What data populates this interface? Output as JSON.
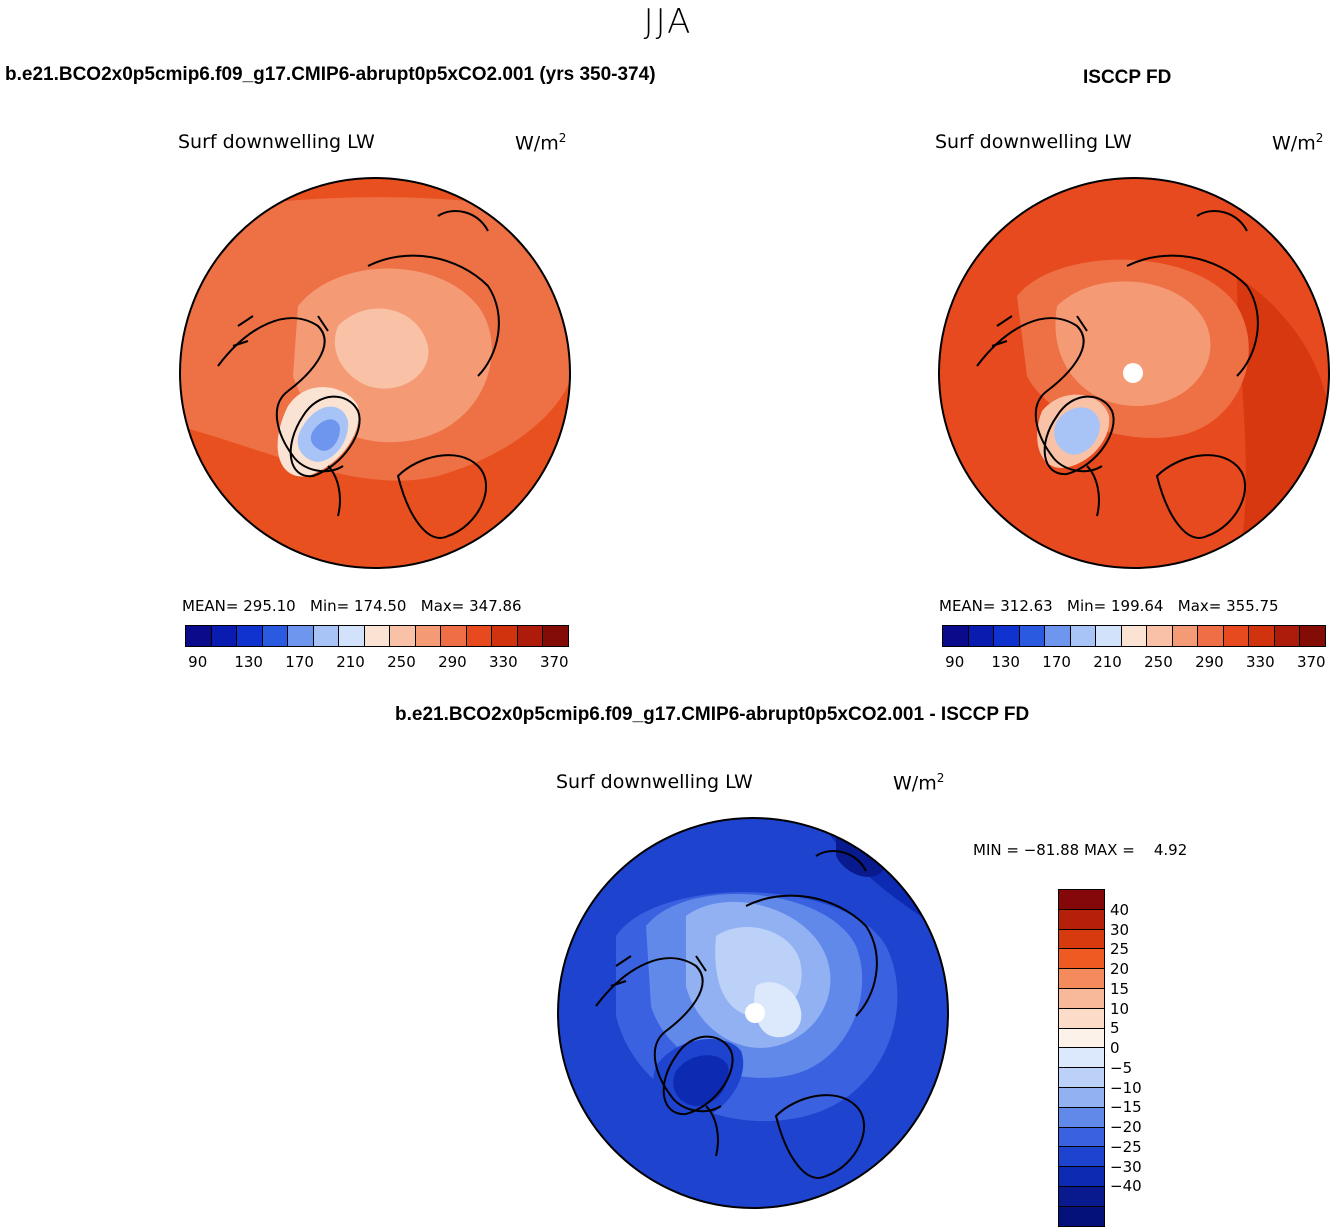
{
  "season": "JJA",
  "left": {
    "title": "b.e21.BCO2x0p5cmip6.f09_g17.CMIP6-abrupt0p5xCO2.001 (yrs 350-374)",
    "var_name": "Surf downwelling LW",
    "units_base": "W/m",
    "units_sup": "2",
    "stats": "MEAN= 295.10   Min= 174.50   Max= 347.86",
    "mean": 295.1,
    "min": 174.5,
    "max": 347.86
  },
  "right": {
    "title": "ISCCP FD",
    "var_name": "Surf downwelling LW",
    "units_base": "W/m",
    "units_sup": "2",
    "stats": "MEAN= 312.63   Min= 199.64   Max= 355.75",
    "mean": 312.63,
    "min": 199.64,
    "max": 355.75
  },
  "diff": {
    "title": "b.e21.BCO2x0p5cmip6.f09_g17.CMIP6-abrupt0p5xCO2.001 - ISCCP FD",
    "var_name": "Surf downwelling LW",
    "units_base": "W/m",
    "units_sup": "2",
    "stats": "MIN = −81.88 MAX =    4.92",
    "min": -81.88,
    "max": 4.92
  },
  "abs_colorbar": {
    "colors": [
      "#0a0a8a",
      "#0a1bb0",
      "#1033d0",
      "#2a5ae0",
      "#6e96ee",
      "#a8c3f5",
      "#d2e2fa",
      "#fbe3d4",
      "#f9c2a6",
      "#f49a74",
      "#ee6f45",
      "#e64a1e",
      "#d1330f",
      "#ad1c0a",
      "#840c06"
    ],
    "tick_labels": [
      "90",
      "130",
      "170",
      "210",
      "250",
      "290",
      "330",
      "370"
    ]
  },
  "diff_colorbar": {
    "colors": [
      "#84080a",
      "#b4200a",
      "#d83a0f",
      "#ee5a22",
      "#f58b5c",
      "#f8b99a",
      "#fcdcc8",
      "#fdf2ea",
      "#dce8fb",
      "#bcd1f8",
      "#91b1f2",
      "#6189ea",
      "#3a62e0",
      "#1d43cf",
      "#0d2bb2",
      "#081a8e",
      "#05117a"
    ],
    "tick_labels": [
      "40",
      "30",
      "25",
      "20",
      "15",
      "10",
      "5",
      "0",
      "−5",
      "−10",
      "−15",
      "−20",
      "−25",
      "−30",
      "−40"
    ]
  }
}
